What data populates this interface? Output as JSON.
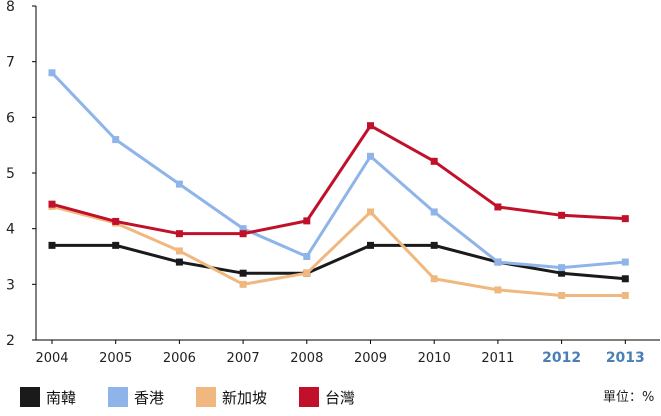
{
  "chart_data": {
    "type": "line",
    "title": "",
    "xlabel": "",
    "ylabel": "",
    "x": [
      "2004",
      "2005",
      "2006",
      "2007",
      "2008",
      "2009",
      "2010",
      "2011",
      "2012",
      "2013"
    ],
    "highlight_x": [
      "2012",
      "2013"
    ],
    "highlight_color": "#4a7fb5",
    "ylim": [
      2,
      8
    ],
    "yticks": [
      "2",
      "3",
      "4",
      "5",
      "6",
      "7",
      "8"
    ],
    "grid": false,
    "legend_position": "bottom",
    "unit_label": "單位：%",
    "series": [
      {
        "name": "南韓",
        "color": "#1a1a1a",
        "values": [
          3.7,
          3.7,
          3.4,
          3.2,
          3.2,
          3.7,
          3.7,
          3.4,
          3.2,
          3.1
        ]
      },
      {
        "name": "香港",
        "color": "#8fb4ea",
        "values": [
          6.8,
          5.6,
          4.8,
          4.0,
          3.5,
          5.3,
          4.3,
          3.4,
          3.3,
          3.4
        ]
      },
      {
        "name": "新加坡",
        "color": "#f0b87e",
        "values": [
          4.4,
          4.1,
          3.6,
          3.0,
          3.2,
          4.3,
          3.1,
          2.9,
          2.8,
          2.8
        ]
      },
      {
        "name": "台灣",
        "color": "#c0102a",
        "values": [
          4.44,
          4.13,
          3.91,
          3.91,
          4.14,
          5.85,
          5.21,
          4.39,
          4.24,
          4.18
        ]
      }
    ]
  }
}
